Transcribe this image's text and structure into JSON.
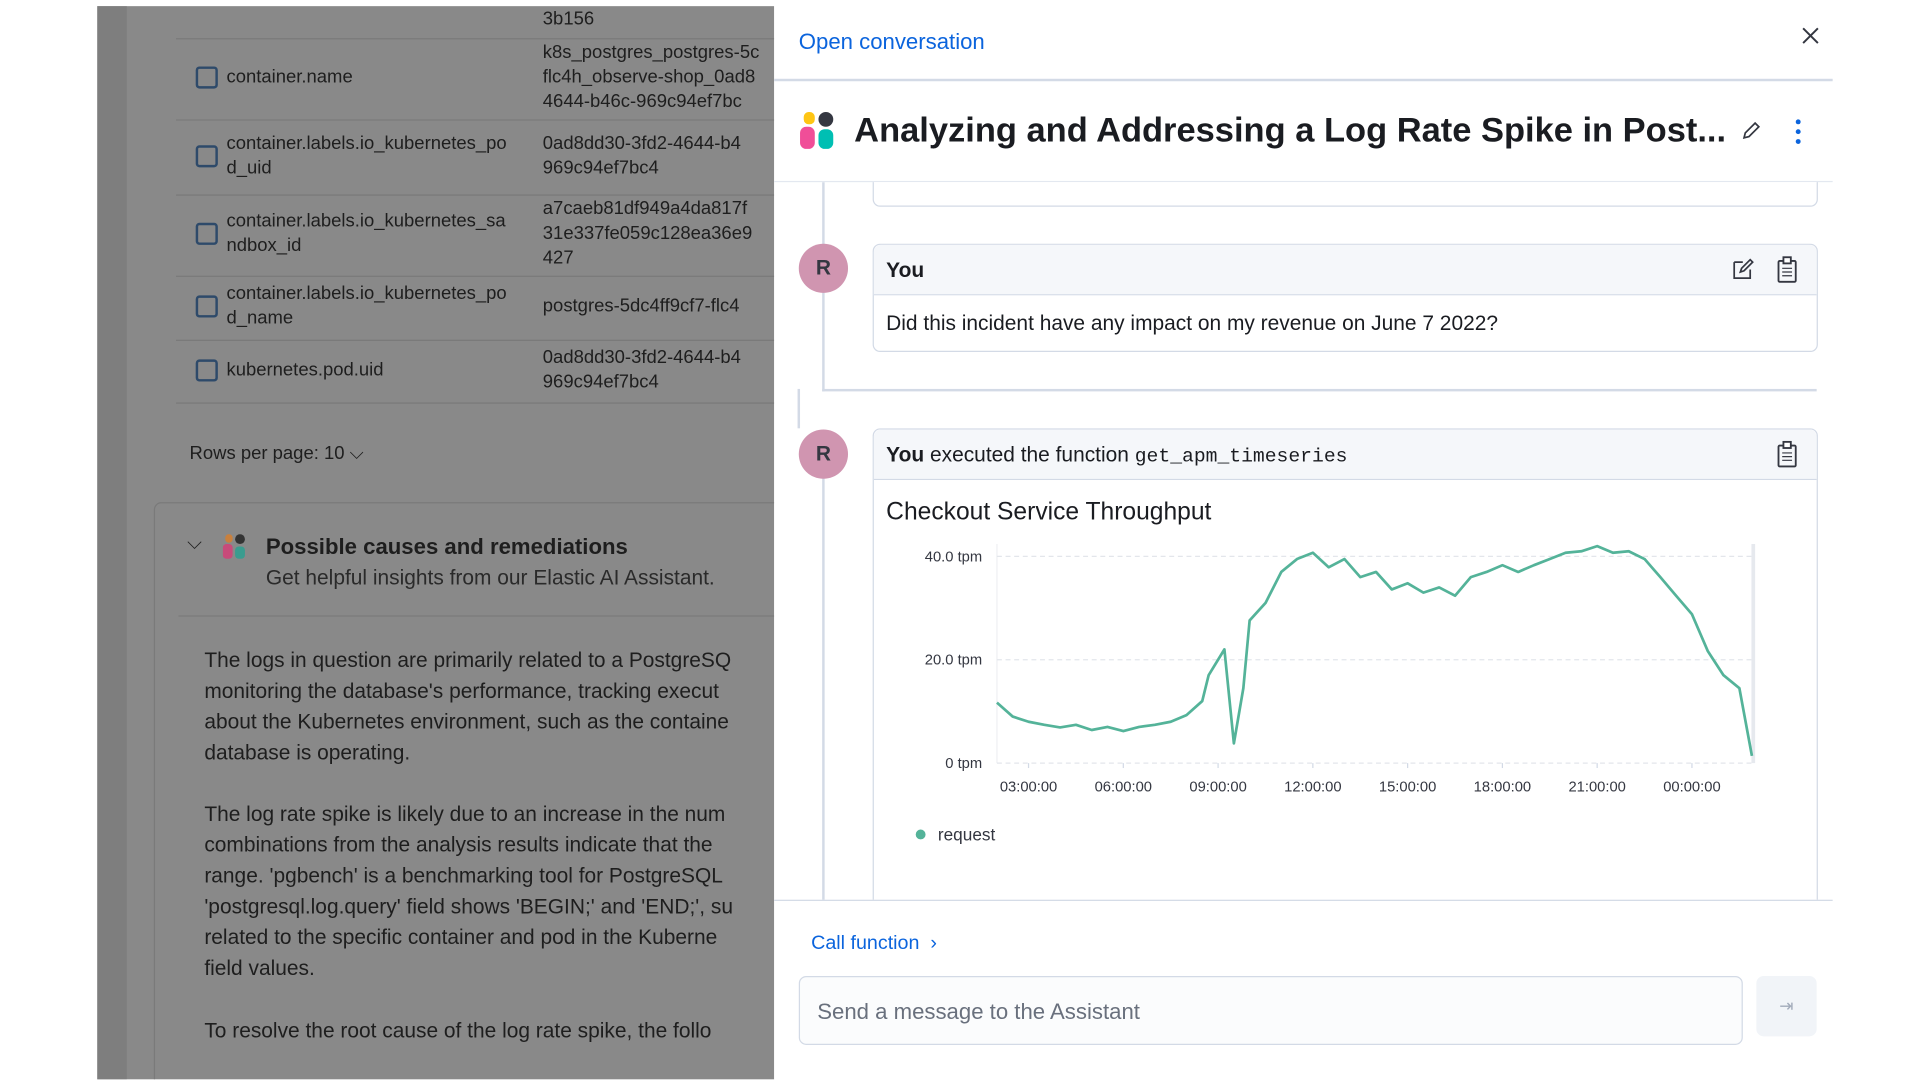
{
  "background": {
    "rows": [
      {
        "value": [
          "3b156"
        ]
      },
      {
        "field": [
          "container.name"
        ],
        "value": [
          "k8s_postgres_postgres-5c",
          "flc4h_observe-shop_0ad8",
          "4644-b46c-969c94ef7bc"
        ]
      },
      {
        "field": [
          "container.labels.io_kubernetes_po",
          "d_uid"
        ],
        "value": [
          "0ad8dd30-3fd2-4644-b4",
          "969c94ef7bc4"
        ]
      },
      {
        "field": [
          "container.labels.io_kubernetes_sa",
          "ndbox_id"
        ],
        "value": [
          "a7caeb81df949a4da817f",
          "31e337fe059c128ea36e9",
          "427"
        ]
      },
      {
        "field": [
          "container.labels.io_kubernetes_po",
          "d_name"
        ],
        "value": [
          "postgres-5dc4ff9cf7-flc4"
        ]
      },
      {
        "field": [
          "kubernetes.pod.uid"
        ],
        "value": [
          "0ad8dd30-3fd2-4644-b4",
          "969c94ef7bc4"
        ]
      }
    ],
    "rows_per_page": "Rows per page: 10",
    "insight": {
      "title": "Possible causes and remediations",
      "subtitle": "Get helpful insights from our Elastic AI Assistant.",
      "paragraphs": [
        [
          "The logs in question are primarily related to a PostgreSQ",
          "monitoring the database's performance, tracking execut",
          "about the Kubernetes environment, such as the containe",
          "database is operating."
        ],
        [
          "The log rate spike is likely due to an increase in the num",
          "combinations from the analysis results indicate that the",
          "range. 'pgbench' is a benchmarking tool for PostgreSQL",
          "'postgresql.log.query' field shows 'BEGIN;' and 'END;', su",
          "related to the specific container and pod in the Kuberne",
          "field values."
        ],
        [
          "To resolve the root cause of the log rate spike, the follo"
        ]
      ]
    }
  },
  "flyout": {
    "link": "Open conversation",
    "title": "Analyzing and Addressing a Log Rate Spike in Post...",
    "messages": [
      {
        "avatar": "R",
        "author": "You",
        "text": "Did this incident have any impact on my revenue on June 7 2022?"
      },
      {
        "avatar": "R",
        "author": "You",
        "action": "executed the function",
        "function": "get_apm_timeseries"
      }
    ],
    "call_function": "Call function",
    "input_placeholder": "Send a message to the Assistant"
  },
  "chart_data": {
    "type": "line",
    "title": "Checkout Service Throughput",
    "x": [
      2,
      2.5,
      3,
      3.5,
      4,
      4.5,
      5,
      5.5,
      6,
      6.5,
      7,
      7.5,
      8,
      8.5,
      8.7,
      9.2,
      9.5,
      9.8,
      10,
      10.5,
      11,
      11.5,
      12,
      12.5,
      13,
      13.5,
      14,
      14.5,
      15,
      15.5,
      16,
      16.5,
      17,
      17.5,
      18,
      18.5,
      19,
      19.5,
      20,
      20.5,
      21,
      21.5,
      22,
      22.5,
      23,
      23.5,
      24,
      24.5,
      25,
      25.5,
      25.9
    ],
    "series": [
      {
        "name": "request",
        "color": "#54b399",
        "values": [
          11.7,
          9,
          8,
          7.4,
          6.9,
          7.4,
          6.4,
          7,
          6.2,
          7,
          7.4,
          8,
          9.3,
          12,
          17,
          22,
          3.8,
          14.5,
          27.6,
          31,
          37,
          39.5,
          40.7,
          37.9,
          39.5,
          36,
          37,
          33.6,
          34.8,
          33,
          34,
          32.4,
          36,
          37,
          38.3,
          37,
          38.3,
          39.5,
          40.7,
          41,
          42,
          40.7,
          41,
          39.5,
          36,
          32.4,
          28.8,
          21.7,
          17,
          14.5,
          1.4
        ]
      }
    ],
    "xlim": [
      2,
      26
    ],
    "xticks": [
      {
        "value": 3,
        "label": "03:00:00"
      },
      {
        "value": 6,
        "label": "06:00:00"
      },
      {
        "value": 9,
        "label": "09:00:00"
      },
      {
        "value": 12,
        "label": "12:00:00"
      },
      {
        "value": 15,
        "label": "15:00:00"
      },
      {
        "value": 18,
        "label": "18:00:00"
      },
      {
        "value": 21,
        "label": "21:00:00"
      },
      {
        "value": 24,
        "label": "00:00:00"
      }
    ],
    "ylim": [
      0,
      42.4
    ],
    "yticks": [
      {
        "value": 0,
        "label": "0 tpm"
      },
      {
        "value": 20,
        "label": "20.0 tpm"
      },
      {
        "value": 40,
        "label": "40.0 tpm"
      }
    ],
    "grid": true
  }
}
